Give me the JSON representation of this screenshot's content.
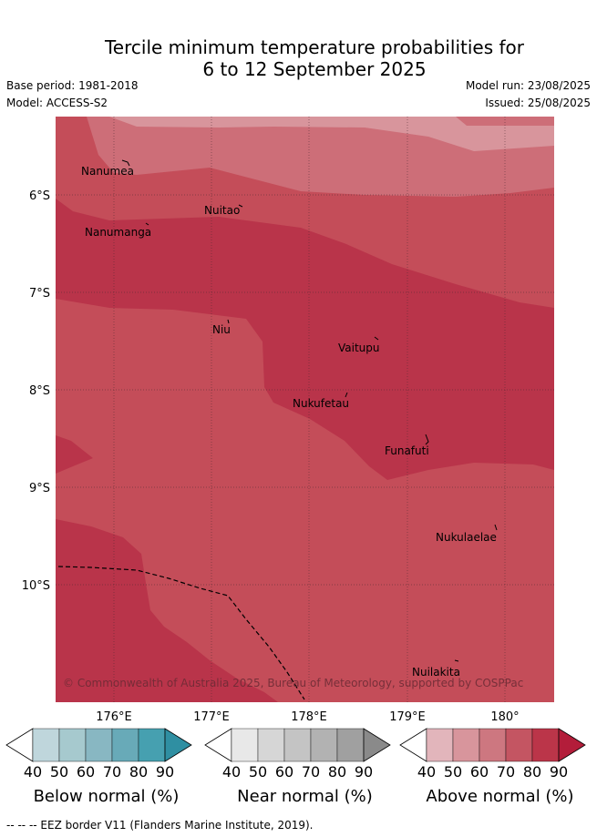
{
  "title": {
    "line1": "Tercile minimum temperature probabilities for",
    "line2": "6 to 12 September 2025"
  },
  "meta": {
    "base_period": "Base period: 1981-2018",
    "model": "Model: ACCESS-S2",
    "model_run": "Model run: 23/08/2025",
    "issued": "Issued: 25/08/2025"
  },
  "map": {
    "lat_labels": [
      "6°S",
      "7°S",
      "8°S",
      "9°S",
      "10°S"
    ],
    "lon_labels": [
      "176°E",
      "177°E",
      "178°E",
      "179°E",
      "180°"
    ],
    "islands": [
      "Nanumea",
      "Nuitao",
      "Nanumanga",
      "Niu",
      "Vaitupu",
      "Nukufetau",
      "Funafuti",
      "Nukulaelae",
      "Nuilakita"
    ],
    "copyright": "© Commonwealth of Australia 2025, Bureau of Meteorology, supported by COSPPac",
    "colors": {
      "above_50": "#d8959c",
      "above_60": "#cd6e78",
      "above_70": "#c44d59",
      "above_80": "#b9344a",
      "eez_line": "#000000"
    }
  },
  "colorbars": [
    {
      "title": "Below normal (%)",
      "ticks": [
        "40",
        "50",
        "60",
        "70",
        "80",
        "90"
      ],
      "colors": [
        "#bfd6dc",
        "#a6c9ce",
        "#88b7c2",
        "#68aab8",
        "#46a0b0",
        "#2f8fa2"
      ]
    },
    {
      "title": "Near normal (%)",
      "ticks": [
        "40",
        "50",
        "60",
        "70",
        "80",
        "90"
      ],
      "colors": [
        "#e8e8e8",
        "#d6d6d6",
        "#c4c4c4",
        "#b2b2b2",
        "#a0a0a0",
        "#8a8a8a"
      ]
    },
    {
      "title": "Above normal (%)",
      "ticks": [
        "40",
        "50",
        "60",
        "70",
        "80",
        "90"
      ],
      "colors": [
        "#e2b5bb",
        "#d8959c",
        "#cd7780",
        "#c45562",
        "#bb3549",
        "#b31d3a"
      ]
    }
  ],
  "footnote": "--  --  -- EEZ border V11 (Flanders Marine Institute, 2019)."
}
